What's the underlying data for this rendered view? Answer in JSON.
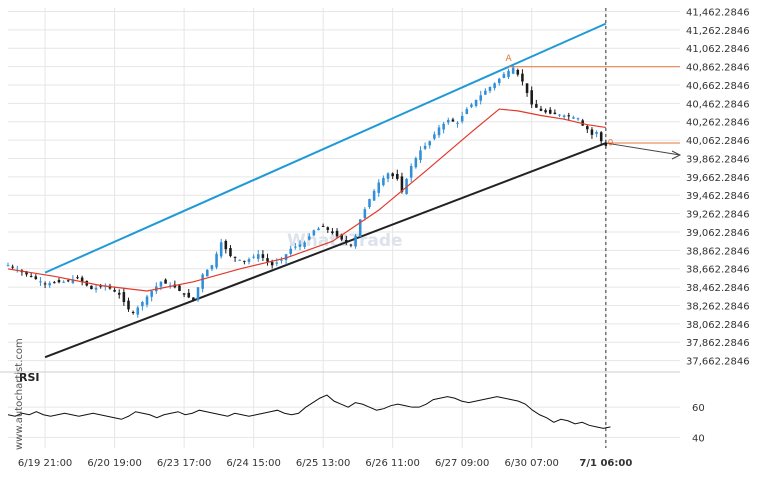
{
  "watermark": {
    "side_text": "www.autochartist.com",
    "logo_text": "What2Trade"
  },
  "colors": {
    "background": "#ffffff",
    "candle_up": "#2f8fd8",
    "candle_down": "#1a1a1a",
    "channel_upper": "#1f9ad6",
    "channel_lower": "#222222",
    "moving_average": "#e23a2a",
    "level_line": "#e8743b",
    "rsi_line": "#111111",
    "grid": "#e6e6e6",
    "time_marker": "#333333"
  },
  "chart_data": [
    {
      "type": "candlestick",
      "title": "",
      "y_ticks": [
        "41,462.2846",
        "41,262.2846",
        "41,062.2846",
        "40,862.2846",
        "40,662.2846",
        "40,462.2846",
        "40,262.2846",
        "40,062.2846",
        "39,862.2846",
        "39,662.2846",
        "39,462.2846",
        "39,262.2846",
        "39,062.2846",
        "38,862.2846",
        "38,662.2846",
        "38,462.2846",
        "38,262.2846",
        "38,062.2846",
        "37,862.2846",
        "37,662.2846"
      ],
      "ylim": [
        37560,
        41500
      ],
      "x_ticks": [
        "6/19 21:00",
        "6/20 19:00",
        "6/23 17:00",
        "6/24 15:00",
        "6/25 13:00",
        "6/26 11:00",
        "6/27 09:00",
        "6/30 07:00",
        "7/1 06:00"
      ],
      "highlighted_x_tick": "7/1 06:00",
      "price_path_points": [
        [
          0,
          38700
        ],
        [
          4,
          38600
        ],
        [
          8,
          38500
        ],
        [
          12,
          38520
        ],
        [
          15,
          38560
        ],
        [
          18,
          38440
        ],
        [
          21,
          38480
        ],
        [
          24,
          38380
        ],
        [
          26,
          38220
        ],
        [
          27,
          38180
        ],
        [
          29,
          38300
        ],
        [
          31,
          38420
        ],
        [
          33,
          38520
        ],
        [
          36,
          38460
        ],
        [
          38,
          38380
        ],
        [
          40,
          38320
        ],
        [
          42,
          38600
        ],
        [
          44,
          38700
        ],
        [
          46,
          38950
        ],
        [
          48,
          38800
        ],
        [
          51,
          38740
        ],
        [
          54,
          38820
        ],
        [
          57,
          38700
        ],
        [
          59,
          38760
        ],
        [
          61,
          38880
        ],
        [
          64,
          38950
        ],
        [
          66,
          39080
        ],
        [
          68,
          39120
        ],
        [
          70,
          39050
        ],
        [
          72,
          38980
        ],
        [
          74,
          38920
        ],
        [
          75,
          39020
        ],
        [
          76,
          39200
        ],
        [
          78,
          39420
        ],
        [
          80,
          39600
        ],
        [
          82,
          39700
        ],
        [
          84,
          39640
        ],
        [
          85,
          39500
        ],
        [
          87,
          39780
        ],
        [
          89,
          39950
        ],
        [
          91,
          40050
        ],
        [
          93,
          40200
        ],
        [
          95,
          40280
        ],
        [
          97,
          40250
        ],
        [
          99,
          40400
        ],
        [
          101,
          40500
        ],
        [
          103,
          40600
        ],
        [
          105,
          40680
        ],
        [
          107,
          40780
        ],
        [
          109,
          40850
        ],
        [
          111,
          40700
        ],
        [
          113,
          40450
        ],
        [
          115,
          40380
        ],
        [
          117,
          40350
        ],
        [
          119,
          40340
        ],
        [
          121,
          40320
        ],
        [
          123,
          40300
        ],
        [
          124,
          40220
        ],
        [
          125,
          40180
        ],
        [
          126,
          40120
        ],
        [
          127,
          40150
        ],
        [
          128,
          40050
        ],
        [
          129,
          40000
        ]
      ],
      "moving_average_points": [
        [
          0,
          38660
        ],
        [
          10,
          38580
        ],
        [
          20,
          38480
        ],
        [
          30,
          38420
        ],
        [
          40,
          38520
        ],
        [
          50,
          38660
        ],
        [
          60,
          38780
        ],
        [
          70,
          38960
        ],
        [
          80,
          39300
        ],
        [
          90,
          39720
        ],
        [
          100,
          40150
        ],
        [
          106,
          40400
        ],
        [
          110,
          40380
        ],
        [
          115,
          40330
        ],
        [
          120,
          40290
        ],
        [
          125,
          40230
        ],
        [
          129,
          40200
        ]
      ],
      "channel_upper": {
        "start": [
          8,
          38620
        ],
        "end": [
          129,
          41330
        ]
      },
      "channel_lower": {
        "start": [
          8,
          37700
        ],
        "end": [
          129,
          40030
        ]
      },
      "resistance_level": 40860,
      "support_level": 40030,
      "forecast_line": {
        "start": [
          129,
          40030
        ],
        "end": [
          145,
          39900
        ]
      },
      "point_labels": [
        {
          "label": "A",
          "at": [
            108,
            40880
          ]
        },
        {
          "label": "0",
          "at": [
            130,
            39960
          ]
        }
      ]
    },
    {
      "type": "line",
      "title": "",
      "label": "RSI",
      "y_ticks": [
        "60",
        "40"
      ],
      "y_tick_values": [
        60,
        40
      ],
      "ylim": [
        33,
        76
      ],
      "series": [
        {
          "values": [
            55,
            54,
            56,
            55,
            57,
            55,
            54,
            55,
            56,
            55,
            54,
            55,
            56,
            55,
            54,
            53,
            52,
            54,
            57,
            56,
            55,
            53,
            55,
            56,
            57,
            55,
            56,
            58,
            57,
            56,
            55,
            54,
            56,
            55,
            54,
            55,
            56,
            57,
            58,
            56,
            55,
            56,
            60,
            63,
            66,
            68,
            64,
            62,
            60,
            63,
            62,
            60,
            58,
            59,
            61,
            62,
            61,
            60,
            60,
            62,
            65,
            66,
            67,
            66,
            64,
            63,
            64,
            65,
            66,
            67,
            66,
            65,
            64,
            62,
            58,
            55,
            53,
            50,
            52,
            51,
            49,
            50,
            48,
            47,
            46,
            47
          ]
        }
      ]
    }
  ]
}
